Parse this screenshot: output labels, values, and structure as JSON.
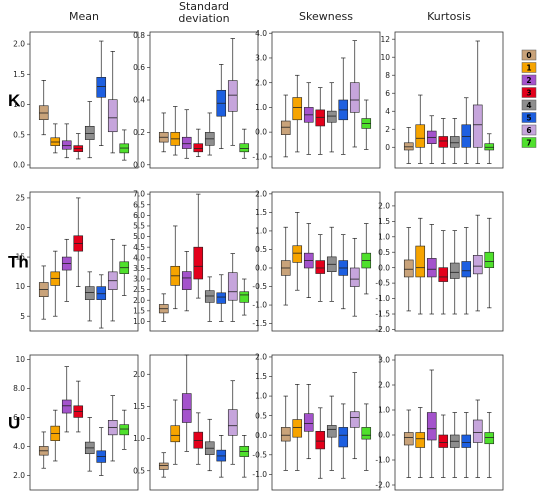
{
  "chart_data": {
    "type": "box",
    "columns": [
      "Mean",
      "Standard\ndeviation",
      "Skewness",
      "Kurtosis"
    ],
    "rows": [
      "K",
      "Th",
      "U"
    ],
    "legend": {
      "position": "right",
      "classes": [
        "0",
        "1",
        "2",
        "3",
        "4",
        "5",
        "6",
        "7"
      ],
      "colors": [
        "#c9a37a",
        "#f6a400",
        "#a453cc",
        "#e3001b",
        "#8e8e8e",
        "#1d5fe0",
        "#c6a5dc",
        "#4fe02c"
      ]
    },
    "panels": [
      {
        "row": "K",
        "col": "Mean",
        "ylim": [
          -0.05,
          2.2
        ],
        "yticks": [
          "0.0",
          "0.5",
          "1.0",
          "1.5",
          "2.0"
        ],
        "ytick_values": [
          0,
          0.5,
          1.0,
          1.5,
          2.0
        ],
        "boxes": [
          [
            0.5,
            0.75,
            0.86,
            0.98,
            1.4
          ],
          [
            0.2,
            0.32,
            0.38,
            0.45,
            0.68
          ],
          [
            0.12,
            0.26,
            0.32,
            0.4,
            0.68
          ],
          [
            0.1,
            0.22,
            0.27,
            0.32,
            0.52
          ],
          [
            0.12,
            0.42,
            0.52,
            0.64,
            1.05
          ],
          [
            0.32,
            1.12,
            1.3,
            1.45,
            2.05
          ],
          [
            0.2,
            0.55,
            0.78,
            1.08,
            1.88
          ],
          [
            0.08,
            0.2,
            0.28,
            0.35,
            0.58
          ]
        ]
      },
      {
        "row": "K",
        "col": "Standard\ndeviation",
        "ylim": [
          -0.02,
          0.82
        ],
        "yticks": [
          "0.0",
          "0.2",
          "0.4",
          "0.6",
          "0.8"
        ],
        "ytick_values": [
          0,
          0.2,
          0.4,
          0.6,
          0.8
        ],
        "boxes": [
          [
            0.08,
            0.14,
            0.17,
            0.2,
            0.32
          ],
          [
            0.06,
            0.12,
            0.16,
            0.2,
            0.36
          ],
          [
            0.04,
            0.1,
            0.13,
            0.17,
            0.34
          ],
          [
            0.05,
            0.08,
            0.1,
            0.13,
            0.22
          ],
          [
            0.06,
            0.12,
            0.16,
            0.2,
            0.32
          ],
          [
            0.1,
            0.3,
            0.38,
            0.46,
            0.62
          ],
          [
            0.12,
            0.33,
            0.43,
            0.52,
            0.78
          ],
          [
            0.04,
            0.08,
            0.1,
            0.13,
            0.22
          ]
        ]
      },
      {
        "row": "K",
        "col": "Skewness",
        "ylim": [
          -1.45,
          4.05
        ],
        "yticks": [
          "-1.0",
          "0.0",
          "1.0",
          "2.0",
          "3.0",
          "4.0"
        ],
        "ytick_values": [
          -1,
          0,
          1,
          2,
          3,
          4
        ],
        "boxes": [
          [
            -1.0,
            -0.1,
            0.2,
            0.45,
            1.5
          ],
          [
            -0.8,
            0.5,
            1.0,
            1.4,
            2.3
          ],
          [
            -0.9,
            0.4,
            0.7,
            1.0,
            2.0
          ],
          [
            -0.9,
            0.25,
            0.6,
            0.9,
            1.8
          ],
          [
            -0.8,
            0.4,
            0.65,
            0.85,
            2.0
          ],
          [
            -0.9,
            0.5,
            0.9,
            1.3,
            3.0
          ],
          [
            -0.6,
            0.8,
            1.3,
            2.0,
            3.7
          ],
          [
            -0.7,
            0.15,
            0.35,
            0.55,
            1.3
          ]
        ]
      },
      {
        "row": "K",
        "col": "Kurtosis",
        "ylim": [
          -2.3,
          12.8
        ],
        "yticks": [
          "0",
          "2",
          "4",
          "6",
          "8",
          "10",
          "12"
        ],
        "ytick_values": [
          0,
          2,
          4,
          6,
          8,
          10,
          12
        ],
        "boxes": [
          [
            -1.8,
            -0.3,
            0.05,
            0.5,
            2.2
          ],
          [
            -1.8,
            0.0,
            1.0,
            2.5,
            5.8
          ],
          [
            -1.8,
            0.4,
            1.1,
            1.8,
            3.5
          ],
          [
            -1.8,
            0.0,
            0.7,
            1.2,
            3.2
          ],
          [
            -1.8,
            0.0,
            0.5,
            1.2,
            3.2
          ],
          [
            -1.8,
            0.0,
            1.2,
            2.5,
            5.5
          ],
          [
            -1.8,
            0.0,
            2.5,
            4.7,
            11.8
          ],
          [
            -1.8,
            -0.3,
            0.0,
            0.4,
            1.5
          ]
        ]
      },
      {
        "row": "Th",
        "col": "Mean",
        "ylim": [
          2.5,
          26
        ],
        "yticks": [
          "5",
          "10",
          "15",
          "20",
          "25"
        ],
        "ytick_values": [
          5,
          10,
          15,
          20,
          25
        ],
        "boxes": [
          [
            4.5,
            8.3,
            9.5,
            10.7,
            13.5
          ],
          [
            5.0,
            10.2,
            11.4,
            12.5,
            16.0
          ],
          [
            7.5,
            12.8,
            13.9,
            15.0,
            18.0
          ],
          [
            10.0,
            16.0,
            17.3,
            18.6,
            25.0
          ],
          [
            4.2,
            7.8,
            9.0,
            10.0,
            12.5
          ],
          [
            3.0,
            7.8,
            8.8,
            10.0,
            12.0
          ],
          [
            4.2,
            9.5,
            11.0,
            12.5,
            18.0
          ],
          [
            8.5,
            12.2,
            13.2,
            14.2,
            17.0
          ]
        ]
      },
      {
        "row": "Th",
        "col": "Standard\ndeviation",
        "ylim": [
          0.55,
          7.1
        ],
        "yticks": [
          "1.0",
          "1.5",
          "2.0",
          "2.5",
          "3.0",
          "3.5",
          "4.0",
          "4.5",
          "5.0",
          "5.5",
          "6.0",
          "6.5",
          "7.0"
        ],
        "ytick_values": [
          1,
          1.5,
          2,
          2.5,
          3,
          3.5,
          4,
          4.5,
          5,
          5.5,
          6,
          6.5,
          7
        ],
        "boxes": [
          [
            1.0,
            1.4,
            1.6,
            1.8,
            2.3
          ],
          [
            1.6,
            2.7,
            3.15,
            3.6,
            5.5
          ],
          [
            1.5,
            2.5,
            3.05,
            3.35,
            4.3
          ],
          [
            2.1,
            3.0,
            3.6,
            4.5,
            7.0
          ],
          [
            1.0,
            1.9,
            2.2,
            2.45,
            3.1
          ],
          [
            1.0,
            1.85,
            2.15,
            2.35,
            3.2
          ],
          [
            1.0,
            2.0,
            2.4,
            3.3,
            4.2
          ],
          [
            1.3,
            1.9,
            2.25,
            2.4,
            3.0
          ]
        ]
      },
      {
        "row": "Th",
        "col": "Skewness",
        "ylim": [
          -1.7,
          2.05
        ],
        "yticks": [
          "-1.5",
          "-1.0",
          "-0.5",
          "0.0",
          "0.5",
          "1.0",
          "1.5",
          "2.0"
        ],
        "ytick_values": [
          -1.5,
          -1,
          -0.5,
          0,
          0.5,
          1,
          1.5,
          2
        ],
        "boxes": [
          [
            -1.0,
            -0.2,
            0.0,
            0.2,
            1.1
          ],
          [
            -0.6,
            0.15,
            0.4,
            0.6,
            1.5
          ],
          [
            -0.8,
            0.0,
            0.2,
            0.4,
            1.2
          ],
          [
            -0.9,
            -0.15,
            0.0,
            0.2,
            0.9
          ],
          [
            -0.9,
            -0.1,
            0.1,
            0.3,
            1.1
          ],
          [
            -1.1,
            -0.2,
            0.0,
            0.2,
            0.9
          ],
          [
            -1.3,
            -0.5,
            -0.3,
            0.0,
            0.8
          ],
          [
            -0.7,
            0.0,
            0.2,
            0.4,
            1.2
          ]
        ]
      },
      {
        "row": "Th",
        "col": "Kurtosis",
        "ylim": [
          -2.05,
          2.45
        ],
        "yticks": [
          "-2.0",
          "-1.5",
          "-1.0",
          "-0.5",
          "0.0",
          "0.5",
          "1.0",
          "1.5",
          "2.0"
        ],
        "ytick_values": [
          -2,
          -1.5,
          -1,
          -0.5,
          0,
          0.5,
          1,
          1.5,
          2
        ],
        "boxes": [
          [
            -1.4,
            -0.3,
            -0.05,
            0.25,
            1.3
          ],
          [
            -1.5,
            -0.3,
            0.0,
            0.7,
            1.6
          ],
          [
            -1.5,
            -0.3,
            -0.05,
            0.3,
            1.4
          ],
          [
            -1.5,
            -0.45,
            -0.3,
            0.0,
            1.2
          ],
          [
            -1.5,
            -0.35,
            -0.15,
            0.15,
            1.2
          ],
          [
            -1.5,
            -0.3,
            -0.1,
            0.2,
            1.3
          ],
          [
            -1.4,
            -0.2,
            0.05,
            0.4,
            1.7
          ],
          [
            -1.3,
            0.0,
            0.2,
            0.5,
            1.6
          ]
        ]
      },
      {
        "row": "U",
        "col": "Mean",
        "ylim": [
          1.0,
          10.3
        ],
        "yticks": [
          "2.0",
          "4.0",
          "6.0",
          "8.0",
          "10"
        ],
        "ytick_values": [
          2,
          4,
          6,
          8,
          10
        ],
        "boxes": [
          [
            2.5,
            3.4,
            3.7,
            4.0,
            5.0
          ],
          [
            3.0,
            4.4,
            4.9,
            5.4,
            6.5
          ],
          [
            5.0,
            6.3,
            6.8,
            7.2,
            9.5
          ],
          [
            5.0,
            6.0,
            6.4,
            6.8,
            8.5
          ],
          [
            2.3,
            3.5,
            3.9,
            4.3,
            6.0
          ],
          [
            2.0,
            2.9,
            3.3,
            3.7,
            5.3
          ],
          [
            3.0,
            4.8,
            5.3,
            5.8,
            7.5
          ],
          [
            3.8,
            4.8,
            5.2,
            5.5,
            6.5
          ]
        ]
      },
      {
        "row": "U",
        "col": "Standard\ndeviation",
        "ylim": [
          0.2,
          2.3
        ],
        "yticks": [
          "0.5",
          "1.0",
          "1.5",
          "2.0"
        ],
        "ytick_values": [
          0.5,
          1,
          1.5,
          2
        ],
        "boxes": [
          [
            0.4,
            0.52,
            0.58,
            0.62,
            0.78
          ],
          [
            0.6,
            0.95,
            1.05,
            1.2,
            1.6
          ],
          [
            0.8,
            1.25,
            1.45,
            1.7,
            2.3
          ],
          [
            0.6,
            0.85,
            0.97,
            1.1,
            1.4
          ],
          [
            0.5,
            0.75,
            0.85,
            0.95,
            1.3
          ],
          [
            0.4,
            0.65,
            0.73,
            0.82,
            1.05
          ],
          [
            0.6,
            1.05,
            1.2,
            1.45,
            1.9
          ],
          [
            0.4,
            0.72,
            0.8,
            0.88,
            1.05
          ]
        ]
      },
      {
        "row": "U",
        "col": "Skewness",
        "ylim": [
          -1.4,
          2.05
        ],
        "yticks": [
          "-1.0",
          "-0.5",
          "0.0",
          "0.5",
          "1.0",
          "1.5",
          "2.0"
        ],
        "ytick_values": [
          -1,
          -0.5,
          0,
          0.5,
          1,
          1.5,
          2
        ],
        "boxes": [
          [
            -0.9,
            -0.15,
            0.0,
            0.2,
            1.0
          ],
          [
            -0.9,
            -0.05,
            0.2,
            0.4,
            1.3
          ],
          [
            -0.6,
            0.1,
            0.3,
            0.55,
            1.3
          ],
          [
            -1.1,
            -0.35,
            -0.15,
            0.1,
            0.7
          ],
          [
            -0.9,
            -0.05,
            0.15,
            0.25,
            1.0
          ],
          [
            -1.1,
            -0.3,
            0.0,
            0.2,
            0.8
          ],
          [
            -0.6,
            0.2,
            0.45,
            0.6,
            1.6
          ],
          [
            -0.9,
            -0.1,
            0.0,
            0.2,
            0.8
          ]
        ]
      },
      {
        "row": "U",
        "col": "Kurtosis",
        "ylim": [
          -2.2,
          3.2
        ],
        "yticks": [
          "-2.0",
          "-1.0",
          "0.0",
          "1.0",
          "2.0",
          "3.0"
        ],
        "ytick_values": [
          -2,
          -1,
          0,
          1,
          2,
          3
        ],
        "boxes": [
          [
            -1.7,
            -0.4,
            -0.1,
            0.1,
            1.0
          ],
          [
            -1.7,
            -0.5,
            -0.15,
            0.1,
            1.1
          ],
          [
            -1.7,
            -0.2,
            0.25,
            0.9,
            2.6
          ],
          [
            -1.7,
            -0.5,
            -0.3,
            0.0,
            0.8
          ],
          [
            -1.7,
            -0.5,
            -0.25,
            0.0,
            0.9
          ],
          [
            -1.7,
            -0.5,
            -0.3,
            0.0,
            0.9
          ],
          [
            -1.7,
            -0.3,
            0.1,
            0.6,
            1.4
          ],
          [
            -1.7,
            -0.35,
            -0.1,
            0.1,
            0.9
          ]
        ]
      }
    ]
  }
}
